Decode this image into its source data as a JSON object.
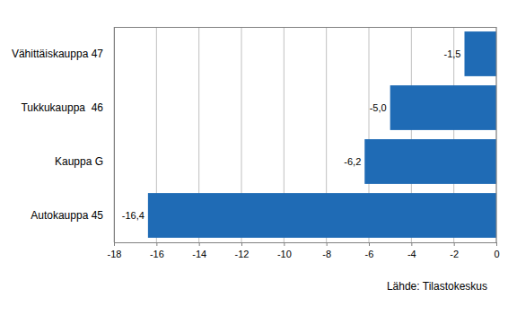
{
  "chart_data": {
    "type": "bar",
    "orientation": "horizontal",
    "categories": [
      "Vähittäiskauppa 47",
      "Tukkukauppa  46",
      "Kauppa G",
      "Autokauppa 45"
    ],
    "values": [
      -1.5,
      -5.0,
      -6.2,
      -16.4
    ],
    "value_labels": [
      "-1,5",
      "-5,0",
      "-6,2",
      "-16,4"
    ],
    "data_labels": true,
    "color": "#1f6bb5",
    "xlim": [
      -18,
      0
    ],
    "xticks": [
      -18,
      -16,
      -14,
      -12,
      -10,
      -8,
      -6,
      -4,
      -2,
      0
    ],
    "grid": true,
    "annotations": [
      "Lähde: Tilastokeskus"
    ]
  }
}
